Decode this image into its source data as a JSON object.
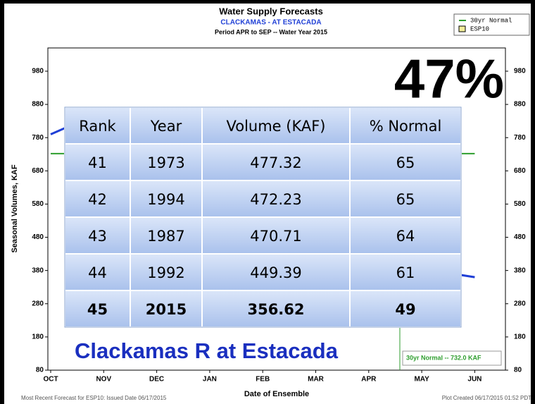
{
  "chart_data": {
    "type": "line",
    "title": "Water Supply Forecasts",
    "subtitle": "CLACKAMAS - AT ESTACADA",
    "period": "Period  APR to SEP  -- Water Year 2015",
    "y_label": "Seasonal Volumes, KAF",
    "x_label": "Date of Ensemble",
    "categories": [
      "OCT",
      "NOV",
      "DEC",
      "JAN",
      "FEB",
      "MAR",
      "APR",
      "MAY",
      "JUN"
    ],
    "series": [
      {
        "name": "30yr Normal",
        "color": "#2e9e2e",
        "values": [
          732,
          732,
          732,
          732,
          732,
          732,
          732,
          732,
          732
        ]
      },
      {
        "name": "ESP10",
        "color": "#1f3fd6",
        "fill": "#f2ee9a",
        "values": [
          790,
          860,
          700,
          600,
          500,
          450,
          420,
          385,
          360
        ]
      }
    ],
    "ylim": [
      80,
      1050
    ],
    "yticks": [
      80,
      180,
      280,
      380,
      480,
      580,
      680,
      780,
      880,
      980
    ],
    "annotation": "30yr Normal -- 732.0 KAF",
    "footer_left": "Most Recent Forecast for ESP10: Issued Date 06/17/2015",
    "footer_right": "Plot Created 06/17/2015 01:52 PDT",
    "legend": "upper right"
  },
  "overlay": {
    "percent": "47%",
    "station": "Clackamas R at Estacada",
    "table": {
      "header": [
        "Rank",
        "Year",
        "Volume (KAF)",
        "% Normal"
      ],
      "rows": [
        [
          41,
          1973,
          477.32,
          65
        ],
        [
          42,
          1994,
          472.23,
          65
        ],
        [
          43,
          1987,
          470.71,
          64
        ],
        [
          44,
          1992,
          449.39,
          61
        ],
        [
          45,
          2015,
          356.62,
          49
        ]
      ],
      "highlight_row": 4
    }
  }
}
